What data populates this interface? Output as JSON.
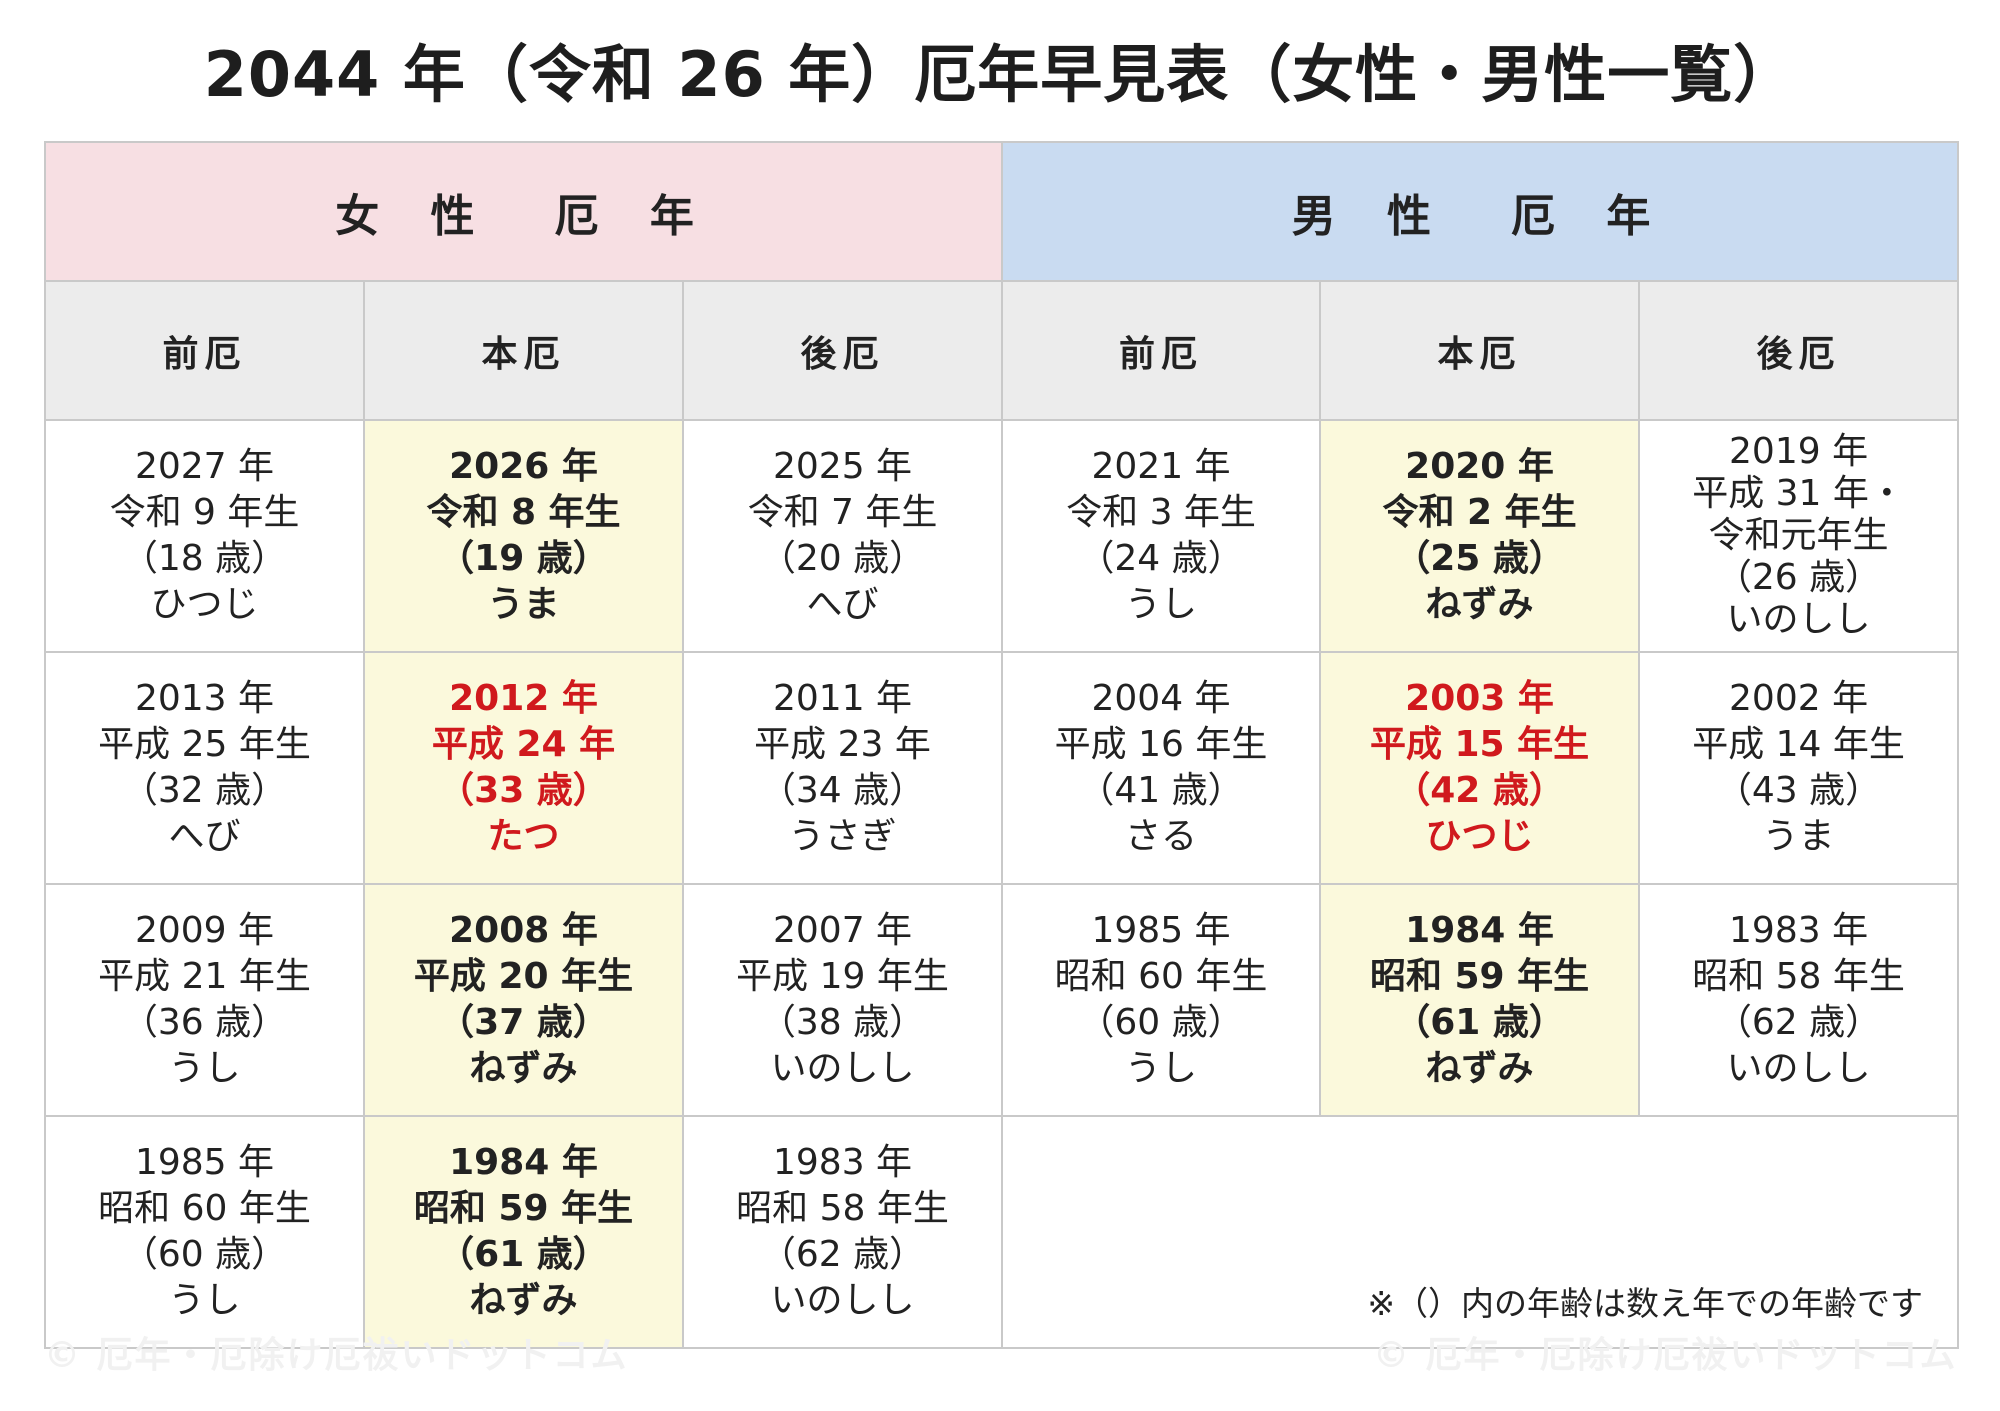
{
  "title": "2044 年（令和 26 年）厄年早見表（女性・男性一覧）",
  "sections": {
    "female": "女 性　厄 年",
    "male": "男 性　厄 年"
  },
  "columns": [
    "前厄",
    "本厄",
    "後厄",
    "前厄",
    "本厄",
    "後厄"
  ],
  "rows": [
    [
      [
        "2027 年",
        "令和 9 年生",
        "（18 歳）",
        "ひつじ"
      ],
      [
        "2026 年",
        "令和 8 年生",
        "（19 歳）",
        "うま"
      ],
      [
        "2025 年",
        "令和 7 年生",
        "（20 歳）",
        "へび"
      ],
      [
        "2021 年",
        "令和 3 年生",
        "（24 歳）",
        "うし"
      ],
      [
        "2020 年",
        "令和 2 年生",
        "（25 歳）",
        "ねずみ"
      ],
      [
        "2019 年",
        "平成 31 年・",
        "令和元年生",
        "（26 歳）",
        "いのしし"
      ]
    ],
    [
      [
        "2013 年",
        "平成 25 年生",
        "（32 歳）",
        "へび"
      ],
      [
        "2012 年",
        "平成 24 年",
        "（33 歳）",
        "たつ"
      ],
      [
        "2011 年",
        "平成 23 年",
        "（34 歳）",
        "うさぎ"
      ],
      [
        "2004 年",
        "平成 16 年生",
        "（41 歳）",
        "さる"
      ],
      [
        "2003 年",
        "平成 15 年生",
        "（42 歳）",
        "ひつじ"
      ],
      [
        "2002 年",
        "平成 14 年生",
        "（43 歳）",
        "うま"
      ]
    ],
    [
      [
        "2009 年",
        "平成 21 年生",
        "（36 歳）",
        "うし"
      ],
      [
        "2008 年",
        "平成 20 年生",
        "（37 歳）",
        "ねずみ"
      ],
      [
        "2007 年",
        "平成 19 年生",
        "（38 歳）",
        "いのしし"
      ],
      [
        "1985 年",
        "昭和 60 年生",
        "（60 歳）",
        "うし"
      ],
      [
        "1984 年",
        "昭和 59 年生",
        "（61 歳）",
        "ねずみ"
      ],
      [
        "1983 年",
        "昭和 58 年生",
        "（62 歳）",
        "いのしし"
      ]
    ],
    [
      [
        "1985 年",
        "昭和 60 年生",
        "（60 歳）",
        "うし"
      ],
      [
        "1984 年",
        "昭和 59 年生",
        "（61 歳）",
        "ねずみ"
      ],
      [
        "1983 年",
        "昭和 58 年生",
        "（62 歳）",
        "いのしし"
      ]
    ]
  ],
  "note": "※（）内の年齢は数え年での年齢です",
  "watermark": "© 厄年・厄除け厄祓いドットコム",
  "colors": {
    "female_header": "#f7dfe3",
    "male_header": "#c9dbf1",
    "column_header": "#ececec",
    "honyaku_highlight": "#fbf9dc",
    "taiyaku_red": "#d0191d"
  }
}
